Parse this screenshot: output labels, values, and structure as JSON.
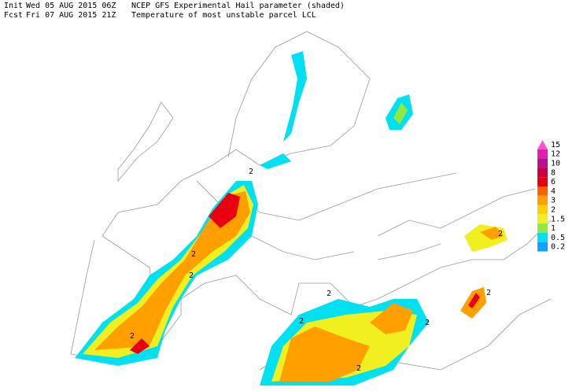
{
  "header": {
    "line1": {
      "label": "Init",
      "time": "Wed 05 AUG 2015 06Z",
      "title": "NCEP GFS Experimental Hail parameter (shaded)"
    },
    "line2": {
      "label": "Fcst",
      "time": "Fri 07 AUG 2015 21Z",
      "title": "Temperature of most unstable parcel LCL"
    }
  },
  "legend": {
    "items": [
      {
        "value": 15,
        "color": "#ff55c8"
      },
      {
        "value": 12,
        "color": "#e020b0"
      },
      {
        "value": 10,
        "color": "#b81090"
      },
      {
        "value": 8,
        "color": "#c80040"
      },
      {
        "value": 6,
        "color": "#e80010"
      },
      {
        "value": 4,
        "color": "#ff6000"
      },
      {
        "value": 3,
        "color": "#ffa000"
      },
      {
        "value": 2,
        "color": "#ffd000"
      },
      {
        "value": 1.5,
        "color": "#f0f020"
      },
      {
        "value": 1,
        "color": "#90e840"
      },
      {
        "value": 0.5,
        "color": "#00e0f0"
      },
      {
        "value": 0.2,
        "color": "#10a0ff"
      }
    ]
  },
  "contour_labels": [
    2,
    2,
    2,
    2,
    2,
    2,
    2,
    2,
    2,
    2
  ]
}
